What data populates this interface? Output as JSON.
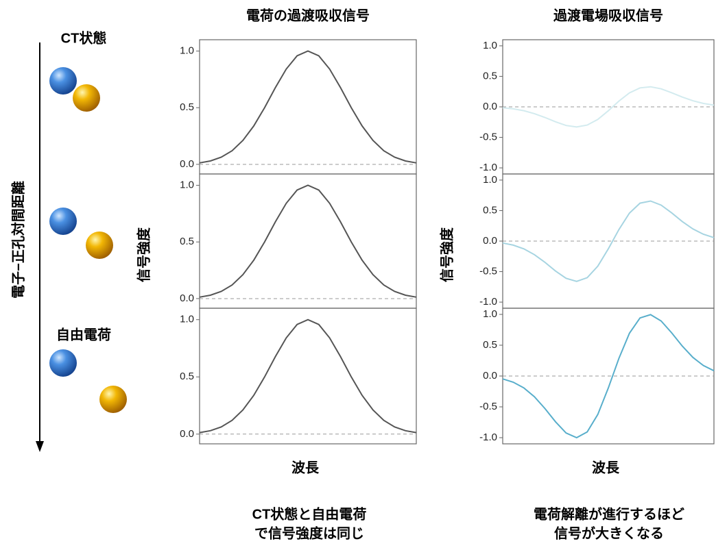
{
  "labels": {
    "ct_state": "CT状態",
    "free_charge": "自由電荷",
    "distance_axis": "電子−正孔対間距離",
    "caption_left": [
      "CT状態と自由電荷",
      "で信号強度は同じ"
    ],
    "caption_right": [
      "電荷解離が進行するほど",
      "信号が大きくなる"
    ]
  },
  "chart_data": [
    {
      "type": "line",
      "title": "電荷の過渡吸収信号",
      "x": [
        0,
        0.5,
        1,
        1.5,
        2,
        2.5,
        3,
        3.5,
        4,
        4.5,
        5,
        5.5,
        6,
        6.5,
        7,
        7.5,
        8,
        8.5,
        9,
        9.5,
        10
      ],
      "xlim": [
        0,
        10
      ],
      "series": [
        {
          "color": "#555555",
          "values": [
            0.013,
            0.03,
            0.063,
            0.12,
            0.211,
            0.339,
            0.5,
            0.678,
            0.841,
            0.958,
            1,
            0.958,
            0.841,
            0.678,
            0.5,
            0.339,
            0.211,
            0.12,
            0.063,
            0.03,
            0.013
          ]
        }
      ],
      "ylim": [
        -0.085,
        1.1
      ],
      "yticks": [
        {
          "value": 0,
          "label": "0.0"
        },
        0.5,
        {
          "value": 1,
          "label": "1.0"
        }
      ]
    },
    {
      "type": "line",
      "y_label": "信号強度",
      "x": [
        0,
        0.5,
        1,
        1.5,
        2,
        2.5,
        3,
        3.5,
        4,
        4.5,
        5,
        5.5,
        6,
        6.5,
        7,
        7.5,
        8,
        8.5,
        9,
        9.5,
        10
      ],
      "xlim": [
        0,
        10
      ],
      "series": [
        {
          "color": "#555555",
          "values": [
            0.013,
            0.03,
            0.063,
            0.12,
            0.211,
            0.339,
            0.5,
            0.678,
            0.841,
            0.958,
            1,
            0.958,
            0.841,
            0.678,
            0.5,
            0.339,
            0.211,
            0.12,
            0.063,
            0.03,
            0.013
          ]
        }
      ],
      "ylim": [
        -0.085,
        1.1
      ],
      "yticks": [
        {
          "value": 0,
          "label": "0.0"
        },
        0.5,
        {
          "value": 1,
          "label": "1.0"
        }
      ]
    },
    {
      "type": "line",
      "x_label": "波長",
      "x": [
        0,
        0.5,
        1,
        1.5,
        2,
        2.5,
        3,
        3.5,
        4,
        4.5,
        5,
        5.5,
        6,
        6.5,
        7,
        7.5,
        8,
        8.5,
        9,
        9.5,
        10
      ],
      "xlim": [
        0,
        10
      ],
      "series": [
        {
          "color": "#555555",
          "values": [
            0.013,
            0.03,
            0.063,
            0.12,
            0.211,
            0.339,
            0.5,
            0.678,
            0.841,
            0.958,
            1,
            0.958,
            0.841,
            0.678,
            0.5,
            0.339,
            0.211,
            0.12,
            0.063,
            0.03,
            0.013
          ]
        }
      ],
      "ylim": [
        -0.085,
        1.1
      ],
      "yticks": [
        {
          "value": 0,
          "label": "0.0"
        },
        0.5,
        {
          "value": 1,
          "label": "1.0"
        }
      ]
    },
    {
      "type": "line",
      "title": "過渡電場吸収信号",
      "x": [
        0,
        0.5,
        1,
        1.5,
        2,
        2.5,
        3,
        3.5,
        4,
        4.5,
        5,
        5.5,
        6,
        6.5,
        7,
        7.5,
        8,
        8.5,
        9,
        9.5,
        10
      ],
      "xlim": [
        0,
        10
      ],
      "series": [
        {
          "color": "#d3ebef",
          "values": [
            -0.016,
            -0.033,
            -0.063,
            -0.111,
            -0.174,
            -0.245,
            -0.305,
            -0.33,
            -0.299,
            -0.206,
            -0.064,
            0.094,
            0.229,
            0.311,
            0.329,
            0.295,
            0.231,
            0.161,
            0.1,
            0.056,
            0.028
          ]
        }
      ],
      "ylim": [
        -1.1,
        1.1
      ],
      "yticks": [
        {
          "value": -1,
          "label": "-1.0"
        },
        -0.5,
        {
          "value": 0,
          "label": "0.0"
        },
        0.5,
        {
          "value": 1,
          "label": "1.0"
        }
      ]
    },
    {
      "type": "line",
      "y_label": "信号強度",
      "x": [
        0,
        0.5,
        1,
        1.5,
        2,
        2.5,
        3,
        3.5,
        4,
        4.5,
        5,
        5.5,
        6,
        6.5,
        7,
        7.5,
        8,
        8.5,
        9,
        9.5,
        10
      ],
      "xlim": [
        0,
        10
      ],
      "series": [
        {
          "color": "#a6d4e1",
          "values": [
            -0.031,
            -0.066,
            -0.127,
            -0.222,
            -0.348,
            -0.49,
            -0.61,
            -0.66,
            -0.599,
            -0.412,
            -0.127,
            0.189,
            0.459,
            0.622,
            0.657,
            0.589,
            0.462,
            0.321,
            0.2,
            0.112,
            0.057
          ]
        }
      ],
      "ylim": [
        -1.1,
        1.1
      ],
      "yticks": [
        {
          "value": -1,
          "label": "-1.0"
        },
        -0.5,
        {
          "value": 0,
          "label": "0.0"
        },
        0.5,
        {
          "value": 1,
          "label": "1.0"
        }
      ]
    },
    {
      "type": "line",
      "x_label": "波長",
      "x": [
        0,
        0.5,
        1,
        1.5,
        2,
        2.5,
        3,
        3.5,
        4,
        4.5,
        5,
        5.5,
        6,
        6.5,
        7,
        7.5,
        8,
        8.5,
        9,
        9.5,
        10
      ],
      "xlim": [
        0,
        10
      ],
      "series": [
        {
          "color": "#58aecb",
          "values": [
            -0.047,
            -0.1,
            -0.192,
            -0.336,
            -0.528,
            -0.742,
            -0.924,
            -1.0,
            -0.907,
            -0.624,
            -0.193,
            0.286,
            0.695,
            0.942,
            0.996,
            0.893,
            0.7,
            0.487,
            0.303,
            0.17,
            0.086
          ]
        }
      ],
      "ylim": [
        -1.1,
        1.1
      ],
      "yticks": [
        {
          "value": -1,
          "label": "-1.0"
        },
        -0.5,
        {
          "value": 0,
          "label": "0.0"
        },
        0.5,
        {
          "value": 1,
          "label": "1.0"
        }
      ]
    }
  ]
}
